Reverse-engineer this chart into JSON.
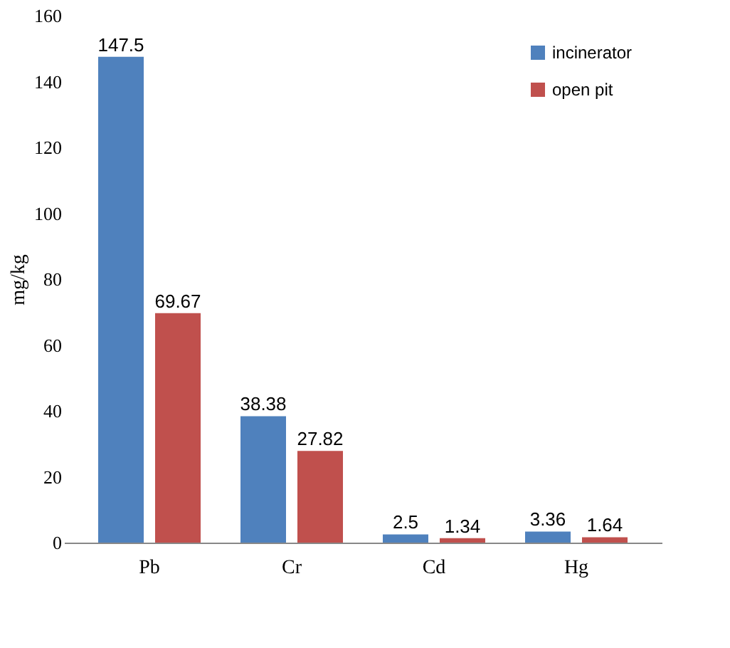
{
  "chart_data": {
    "type": "bar",
    "ylabel": "mg/kg",
    "categories": [
      "Pb",
      "Cr",
      "Cd",
      "Hg"
    ],
    "series": [
      {
        "name": "incinerator",
        "color": "#4f81bd",
        "values": [
          147.5,
          38.38,
          2.5,
          3.36
        ]
      },
      {
        "name": "open pit",
        "color": "#c0504d",
        "values": [
          69.67,
          27.82,
          1.34,
          1.64
        ]
      }
    ],
    "ylim": [
      0,
      160
    ],
    "yticks": [
      0,
      20,
      40,
      60,
      80,
      100,
      120,
      140,
      160
    ],
    "data_labels": true,
    "legend": "top right",
    "grid": false
  }
}
